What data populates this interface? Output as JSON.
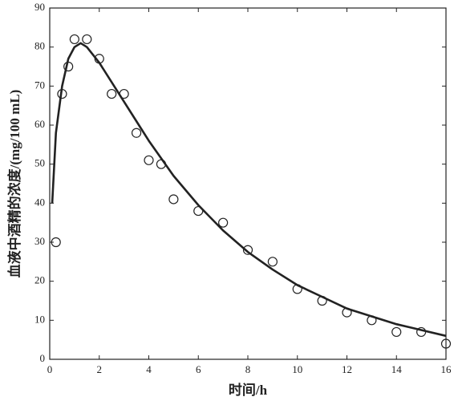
{
  "chart_data": {
    "type": "scatter",
    "xlabel": "时间/h",
    "ylabel": "血液中酒精的浓度/(mg/100 mL)",
    "xlim": [
      0,
      16
    ],
    "xticks": [
      0,
      2,
      4,
      6,
      8,
      10,
      12,
      14,
      16
    ],
    "ylim": [
      0,
      90
    ],
    "yticks": [
      0,
      10,
      20,
      30,
      40,
      50,
      60,
      70,
      80,
      90
    ],
    "series": [
      {
        "type": "scatter",
        "color": "#222222",
        "x": [
          0.25,
          0.5,
          0.75,
          1,
          1.5,
          2,
          2.5,
          3,
          3.5,
          4,
          4.5,
          5,
          6,
          7,
          8,
          9,
          10,
          11,
          12,
          13,
          14,
          15,
          16
        ],
        "values": [
          30,
          68,
          75,
          82,
          82,
          77,
          68,
          68,
          58,
          51,
          50,
          41,
          38,
          35,
          28,
          25,
          18,
          15,
          12,
          10,
          7,
          7,
          4
        ]
      },
      {
        "type": "line",
        "color": "#222222",
        "x": [
          0.1,
          0.1,
          0.25,
          0.5,
          0.75,
          1,
          1.25,
          1.5,
          2,
          2.5,
          3,
          3.5,
          4,
          5,
          6,
          7,
          8,
          9,
          10,
          11,
          12,
          13,
          14,
          15,
          16
        ],
        "values": [
          40,
          40,
          58,
          70,
          77,
          80,
          81,
          80,
          76,
          71,
          66,
          61,
          56,
          47,
          39.5,
          33,
          27.5,
          23,
          19,
          16,
          13,
          11,
          9,
          7.5,
          6
        ]
      }
    ]
  }
}
